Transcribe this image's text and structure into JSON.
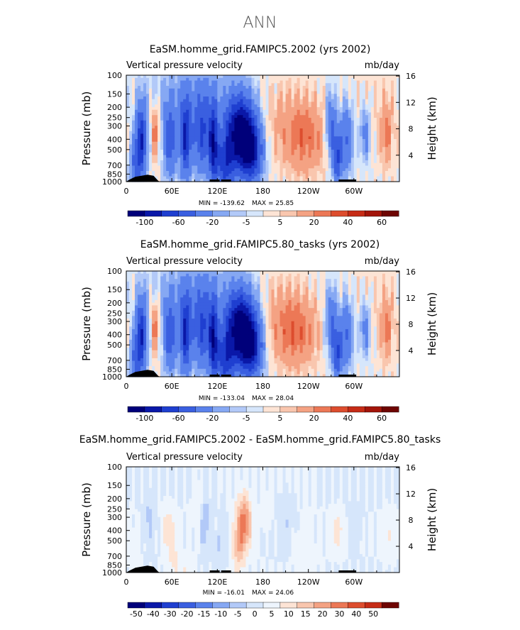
{
  "page_title": "ANN",
  "chart_data": [
    {
      "type": "heatmap",
      "title": "EaSM.homme_grid.FAMIPC5.2002 (yrs 2002)",
      "left_label": "Vertical pressure velocity",
      "right_label": "mb/day",
      "ylabel": "Pressure (mb)",
      "ylabel_right": "Height (km)",
      "xticklabels": [
        "0",
        "60E",
        "120E",
        "180",
        "120W",
        "60W"
      ],
      "xticks_deg": [
        0,
        60,
        120,
        180,
        240,
        300
      ],
      "xlim": [
        0,
        360
      ],
      "yticks_mb": [
        100,
        150,
        200,
        250,
        300,
        400,
        500,
        700,
        850,
        1000
      ],
      "ylim_mb": [
        1000,
        100
      ],
      "yticks_km": [
        4,
        8,
        12,
        16
      ],
      "min_text": "MIN = -139.62",
      "max_text": "MAX =  25.85",
      "colorbar_labels": [
        "-100",
        "-60",
        "-20",
        "-5",
        "5",
        "20",
        "40",
        "60"
      ],
      "colorbar_colors": [
        "#00007a",
        "#0a18a8",
        "#1f3fd0",
        "#3a5fe0",
        "#5a82ec",
        "#86a8f3",
        "#b2c9f8",
        "#d6e6fb",
        "#fde4d5",
        "#f9c6ae",
        "#f4a283",
        "#ec7856",
        "#dd4d2e",
        "#c62c16",
        "#a3150a",
        "#6e0502"
      ]
    },
    {
      "type": "heatmap",
      "title": "EaSM.homme_grid.FAMIPC5.80_tasks (yrs 2002)",
      "left_label": "Vertical pressure velocity",
      "right_label": "mb/day",
      "ylabel": "Pressure (mb)",
      "ylabel_right": "Height (km)",
      "xticklabels": [
        "0",
        "60E",
        "120E",
        "180",
        "120W",
        "60W"
      ],
      "xticks_deg": [
        0,
        60,
        120,
        180,
        240,
        300
      ],
      "xlim": [
        0,
        360
      ],
      "yticks_mb": [
        100,
        150,
        200,
        250,
        300,
        400,
        500,
        700,
        850,
        1000
      ],
      "ylim_mb": [
        1000,
        100
      ],
      "yticks_km": [
        4,
        8,
        12,
        16
      ],
      "min_text": "MIN = -133.04",
      "max_text": "MAX =  28.04",
      "colorbar_labels": [
        "-100",
        "-60",
        "-20",
        "-5",
        "5",
        "20",
        "40",
        "60"
      ],
      "colorbar_colors": [
        "#00007a",
        "#0a18a8",
        "#1f3fd0",
        "#3a5fe0",
        "#5a82ec",
        "#86a8f3",
        "#b2c9f8",
        "#d6e6fb",
        "#fde4d5",
        "#f9c6ae",
        "#f4a283",
        "#ec7856",
        "#dd4d2e",
        "#c62c16",
        "#a3150a",
        "#6e0502"
      ]
    },
    {
      "type": "heatmap",
      "title": "EaSM.homme_grid.FAMIPC5.2002 - EaSM.homme_grid.FAMIPC5.80_tasks",
      "left_label": "Vertical pressure velocity",
      "right_label": "mb/day",
      "ylabel": "Pressure (mb)",
      "ylabel_right": "Height (km)",
      "xticklabels": [
        "0",
        "60E",
        "120E",
        "180",
        "120W",
        "60W"
      ],
      "xticks_deg": [
        0,
        60,
        120,
        180,
        240,
        300
      ],
      "xlim": [
        0,
        360
      ],
      "yticks_mb": [
        100,
        150,
        200,
        250,
        300,
        400,
        500,
        700,
        850,
        1000
      ],
      "ylim_mb": [
        1000,
        100
      ],
      "yticks_km": [
        4,
        8,
        12,
        16
      ],
      "min_text": "MIN = -16.01",
      "max_text": "MAX =  24.06",
      "colorbar_labels": [
        "-50",
        "-40",
        "-30",
        "-20",
        "-15",
        "-10",
        "-5",
        "0",
        "5",
        "10",
        "15",
        "20",
        "30",
        "40",
        "50"
      ],
      "colorbar_colors": [
        "#00007a",
        "#0a18a8",
        "#1f3fd0",
        "#3a5fe0",
        "#5a82ec",
        "#86a8f3",
        "#b2c9f8",
        "#d6e6fb",
        "#eef5fd",
        "#fde4d5",
        "#f9c6ae",
        "#f4a283",
        "#ec7856",
        "#dd4d2e",
        "#c62c16",
        "#6e0502"
      ]
    }
  ]
}
